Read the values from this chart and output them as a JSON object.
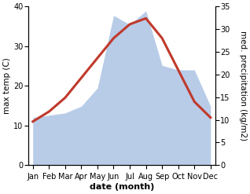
{
  "months": [
    "Jan",
    "Feb",
    "Mar",
    "Apr",
    "May",
    "Jun",
    "Jul",
    "Aug",
    "Sep",
    "Oct",
    "Nov",
    "Dec"
  ],
  "temperature": [
    11,
    13.5,
    17,
    22,
    27,
    32,
    35.5,
    37,
    32,
    24,
    16,
    12
  ],
  "precipitation": [
    10.5,
    11,
    11.5,
    13,
    17,
    33,
    31,
    34,
    22,
    21,
    21,
    13
  ],
  "temp_color": "#c0392b",
  "precip_color": "#b8cce8",
  "temp_ylim": [
    0,
    40
  ],
  "precip_ylim": [
    0,
    35
  ],
  "temp_yticks": [
    0,
    10,
    20,
    30,
    40
  ],
  "precip_yticks": [
    0,
    5,
    10,
    15,
    20,
    25,
    30,
    35
  ],
  "xlabel": "date (month)",
  "ylabel_left": "max temp (C)",
  "ylabel_right": "med. precipitation (kg/m2)",
  "background_color": "#ffffff",
  "temp_linewidth": 2.2,
  "xlabel_fontsize": 8,
  "ylabel_fontsize": 7.5,
  "tick_fontsize": 7
}
